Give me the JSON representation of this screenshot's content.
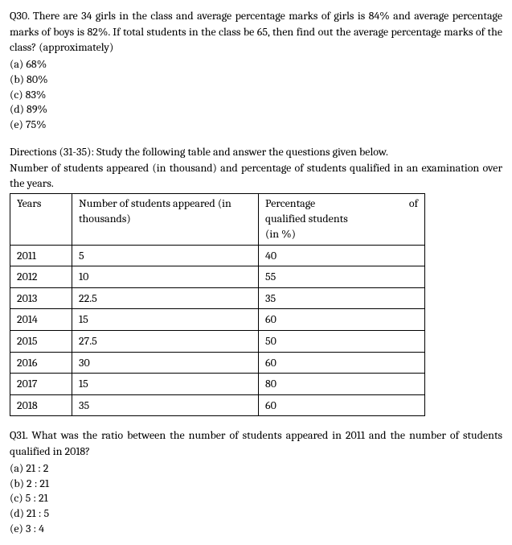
{
  "q30": {
    "text": "Q30. There are 34 girls in the class and average percentage marks of girls is 84% and average percentage marks of boys is 82%. If total students in the class be 65, then find out the average percentage marks of the class? (approximately)",
    "options": {
      "a": "(a) 68%",
      "b": "(b) 80%",
      "c": "(c) 83%",
      "d": "(d) 89%",
      "e": "(e) 75%"
    }
  },
  "directions": {
    "line1": "Directions (31-35): Study the following table and answer the questions given below.",
    "line2": "Number of students appeared (in thousand) and percentage of students qualified in an examination over the years."
  },
  "table": {
    "headers": {
      "years": "Years",
      "appeared": "Number of students appeared (in thousands)",
      "qualified_l1": "Percentage of",
      "qualified_l2": "qualified students",
      "qualified_l3": "(in %)"
    },
    "rows": [
      {
        "year": "2011",
        "appeared": "5",
        "qualified": "40"
      },
      {
        "year": "2012",
        "appeared": "10",
        "qualified": "55"
      },
      {
        "year": "2013",
        "appeared": "22.5",
        "qualified": "35"
      },
      {
        "year": "2014",
        "appeared": "15",
        "qualified": "60"
      },
      {
        "year": "2015",
        "appeared": "27.5",
        "qualified": "50"
      },
      {
        "year": "2016",
        "appeared": "30",
        "qualified": "60"
      },
      {
        "year": "2017",
        "appeared": "15",
        "qualified": "80"
      },
      {
        "year": "2018",
        "appeared": "35",
        "qualified": "60"
      }
    ]
  },
  "q31": {
    "text": "Q31. What was the ratio between the number of students appeared in 2011 and the number of students qualified in 2018?",
    "options": {
      "a": "(a) 21 : 2",
      "b": "(b) 2 : 21",
      "c": "(c) 5 : 21",
      "d": "(d) 21 : 5",
      "e": "(e) 3 : 4"
    }
  }
}
